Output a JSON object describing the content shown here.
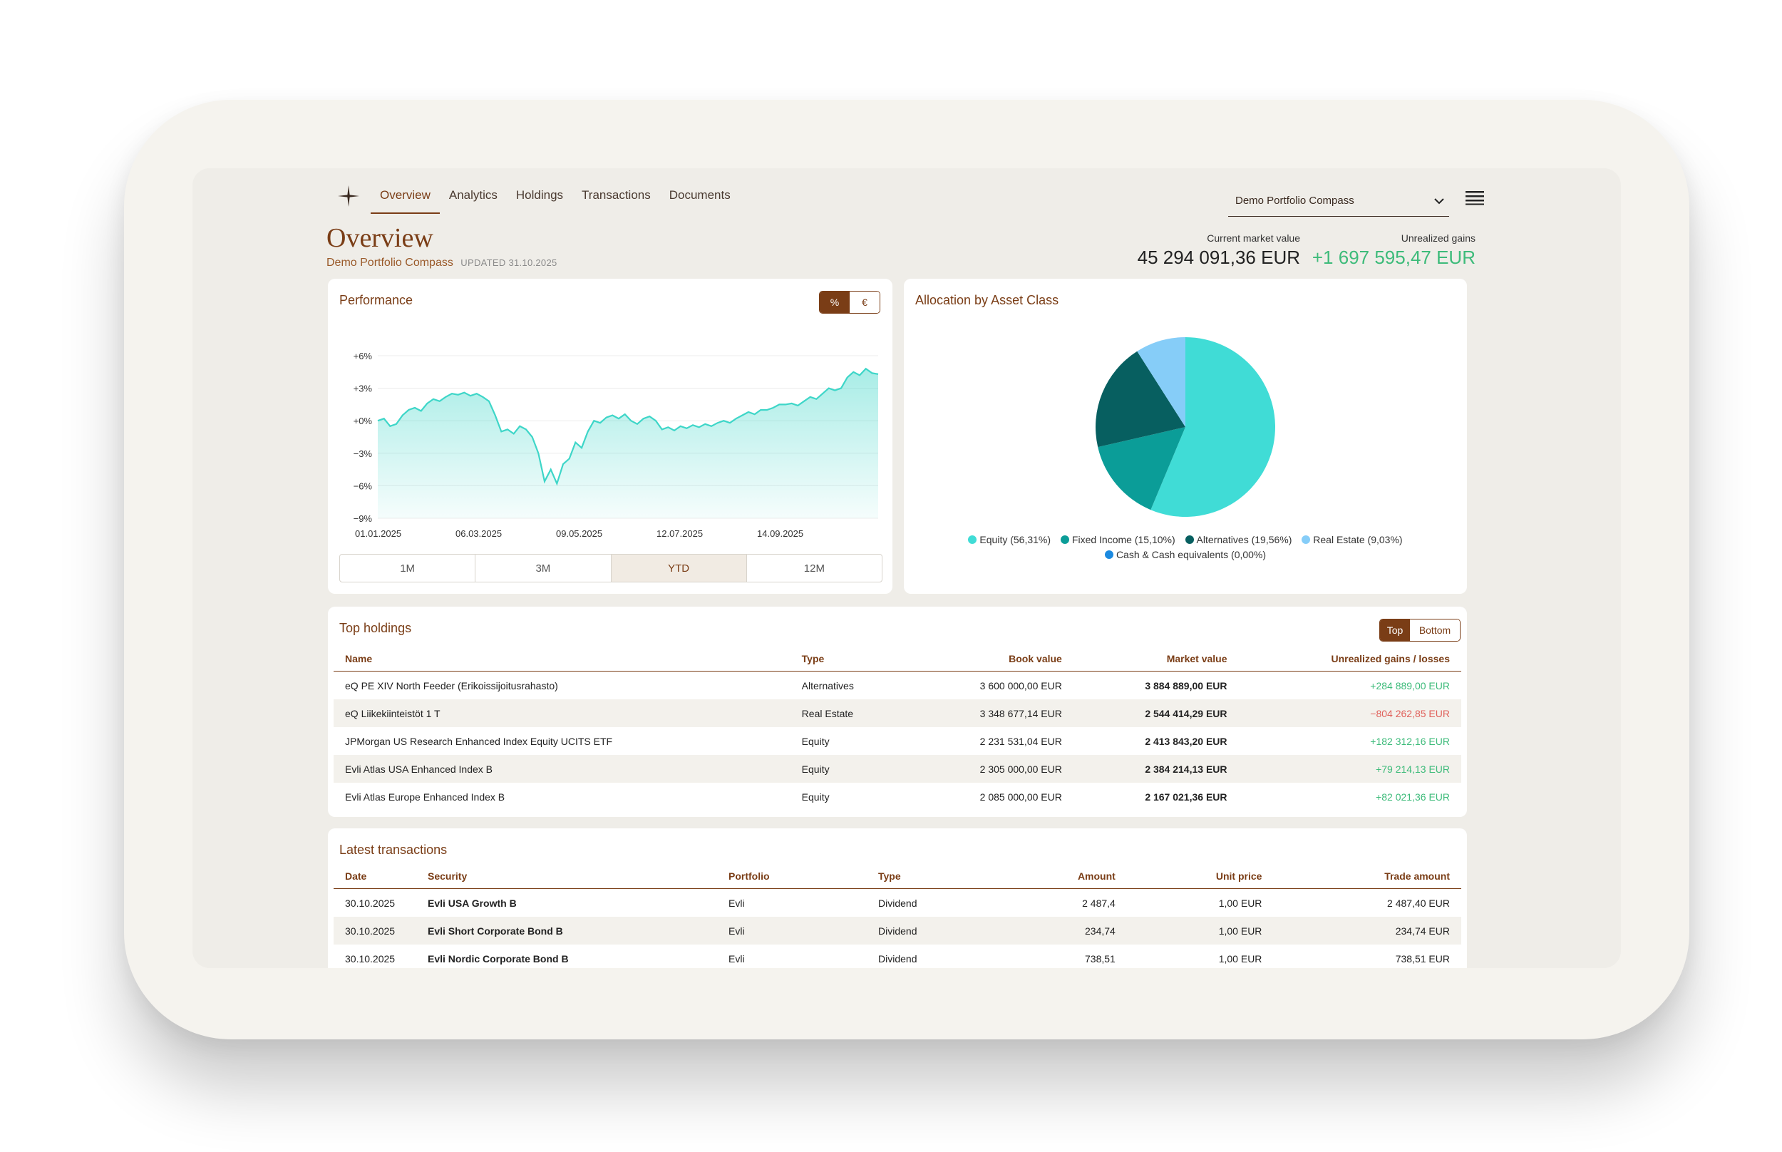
{
  "nav": {
    "items": [
      "Overview",
      "Analytics",
      "Holdings",
      "Transactions",
      "Documents"
    ],
    "active": "Overview"
  },
  "portfolio_select": {
    "value": "Demo Portfolio Compass"
  },
  "header": {
    "title": "Overview",
    "portfolio_name": "Demo Portfolio Compass",
    "updated": "UPDATED 31.10.2025",
    "market_value_label": "Current market value",
    "market_value": "45 294 091,36 EUR",
    "gains_label": "Unrealized gains",
    "gains": "+1 697 595,47 EUR"
  },
  "performance": {
    "title": "Performance",
    "toggle": [
      "%",
      "€"
    ],
    "ranges": [
      "1M",
      "3M",
      "YTD",
      "12M"
    ],
    "active_range": "YTD"
  },
  "allocation": {
    "title": "Allocation by Asset Class"
  },
  "chart_data": [
    {
      "type": "area",
      "title": "Performance",
      "y_ticks": [
        "+6%",
        "+3%",
        "+0%",
        "−3%",
        "−6%",
        "−9%"
      ],
      "x_ticks": [
        "01.01.2025",
        "06.03.2025",
        "09.05.2025",
        "12.07.2025",
        "14.09.2025"
      ],
      "ylim": [
        -9,
        6
      ],
      "grid": true,
      "color": "#3ed6c8",
      "series": [
        {
          "values": [
            0.0,
            0.2,
            -0.5,
            -0.3,
            0.5,
            1.0,
            1.2,
            0.9,
            1.6,
            2.0,
            1.8,
            2.2,
            2.5,
            2.4,
            2.6,
            2.3,
            2.5,
            2.2,
            1.8,
            0.5,
            -1.0,
            -0.8,
            -1.2,
            -0.5,
            -0.8,
            -1.5,
            -3.0,
            -5.6,
            -4.5,
            -5.8,
            -4.0,
            -3.5,
            -2.0,
            -2.5,
            -1.0,
            0.0,
            -0.2,
            0.3,
            0.5,
            0.2,
            0.6,
            0.0,
            -0.3,
            0.2,
            0.4,
            0.0,
            -0.8,
            -0.6,
            -0.9,
            -0.5,
            -0.7,
            -0.4,
            -0.6,
            -0.3,
            -0.5,
            -0.2,
            0.0,
            -0.2,
            0.2,
            0.5,
            0.8,
            0.6,
            1.0,
            1.0,
            1.2,
            1.5,
            1.5,
            1.6,
            1.4,
            1.8,
            2.2,
            2.0,
            2.5,
            3.0,
            2.8,
            3.0,
            4.0,
            4.5,
            4.2,
            4.8,
            4.4,
            4.3
          ]
        }
      ]
    },
    {
      "type": "pie",
      "title": "Allocation by Asset Class",
      "legend_position": "bottom",
      "slices": [
        {
          "label": "Equity (56,31%)",
          "value": 56.31,
          "color": "#40dcd6"
        },
        {
          "label": "Fixed Income (15,10%)",
          "value": 15.1,
          "color": "#0b9d98"
        },
        {
          "label": "Alternatives (19,56%)",
          "value": 19.56,
          "color": "#075f60"
        },
        {
          "label": "Real Estate (9,03%)",
          "value": 9.03,
          "color": "#86cdf8"
        },
        {
          "label": "Cash & Cash equivalents (0,00%)",
          "value": 0.0,
          "color": "#1c8ae0"
        }
      ]
    }
  ],
  "holdings": {
    "title": "Top holdings",
    "toggle": [
      "Top",
      "Bottom"
    ],
    "columns": [
      "Name",
      "Type",
      "Book value",
      "Market value",
      "Unrealized gains / losses"
    ],
    "rows": [
      {
        "name": "eQ PE XIV North Feeder (Erikoissijoitusrahasto)",
        "type": "Alternatives",
        "book": "3 600 000,00 EUR",
        "market": "3 884 889,00 EUR",
        "gain": "+284 889,00 EUR",
        "sign": "pos"
      },
      {
        "name": "eQ Liikekiinteistöt 1 T",
        "type": "Real Estate",
        "book": "3 348 677,14 EUR",
        "market": "2 544 414,29 EUR",
        "gain": "−804 262,85 EUR",
        "sign": "neg"
      },
      {
        "name": "JPMorgan US Research Enhanced Index Equity UCITS ETF",
        "type": "Equity",
        "book": "2 231 531,04 EUR",
        "market": "2 413 843,20 EUR",
        "gain": "+182 312,16 EUR",
        "sign": "pos"
      },
      {
        "name": "Evli Atlas USA Enhanced Index B",
        "type": "Equity",
        "book": "2 305 000,00 EUR",
        "market": "2 384 214,13 EUR",
        "gain": "+79 214,13 EUR",
        "sign": "pos"
      },
      {
        "name": "Evli Atlas Europe Enhanced Index B",
        "type": "Equity",
        "book": "2 085 000,00 EUR",
        "market": "2 167 021,36 EUR",
        "gain": "+82 021,36 EUR",
        "sign": "pos"
      }
    ]
  },
  "transactions": {
    "title": "Latest transactions",
    "columns": [
      "Date",
      "Security",
      "Portfolio",
      "Type",
      "Amount",
      "Unit price",
      "Trade amount"
    ],
    "rows": [
      {
        "date": "30.10.2025",
        "security": "Evli USA Growth B",
        "portfolio": "Evli",
        "type": "Dividend",
        "amount": "2 487,4",
        "unit": "1,00 EUR",
        "trade": "2 487,40 EUR"
      },
      {
        "date": "30.10.2025",
        "security": "Evli Short Corporate Bond B",
        "portfolio": "Evli",
        "type": "Dividend",
        "amount": "234,74",
        "unit": "1,00 EUR",
        "trade": "234,74 EUR"
      },
      {
        "date": "30.10.2025",
        "security": "Evli Nordic Corporate Bond B",
        "portfolio": "Evli",
        "type": "Dividend",
        "amount": "738,51",
        "unit": "1,00 EUR",
        "trade": "738,51 EUR"
      }
    ]
  },
  "icons": {
    "logo": "sparkle-logo-icon",
    "dropdown": "chevron-down-icon",
    "menu": "hamburger-menu-icon"
  }
}
